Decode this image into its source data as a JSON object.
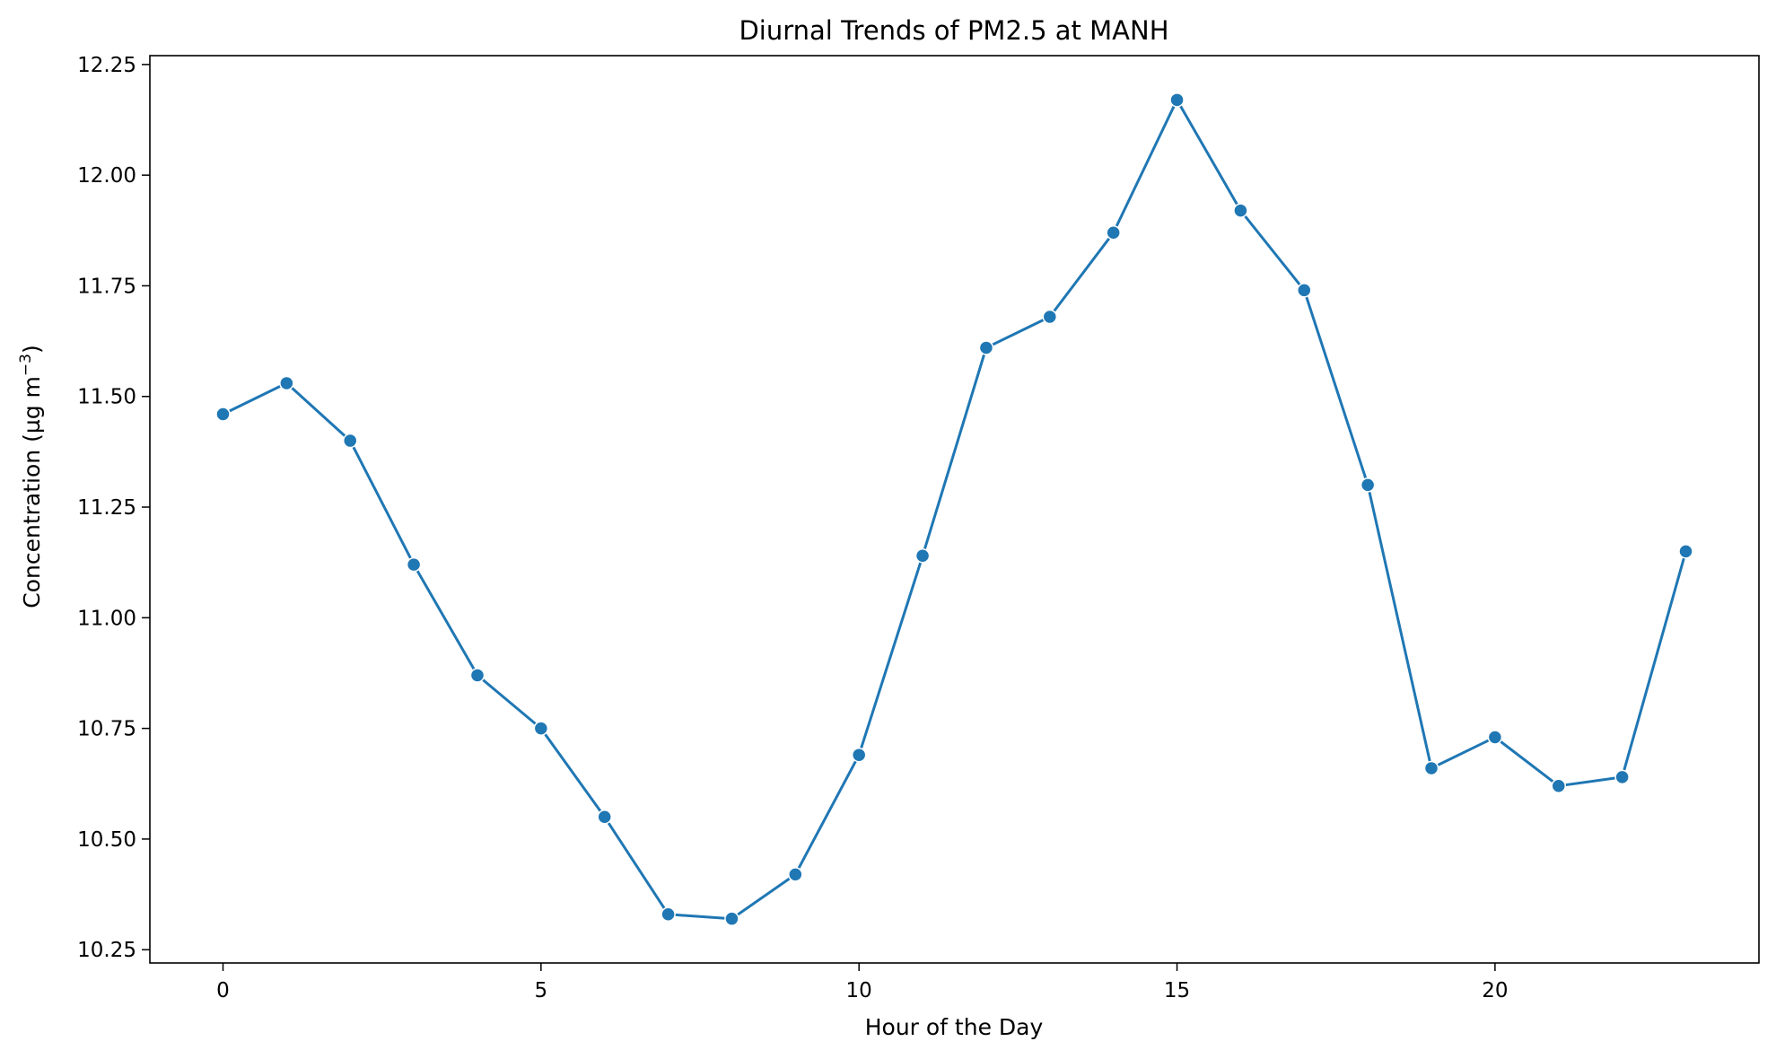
{
  "chart_data": {
    "type": "line",
    "title": "Diurnal Trends of PM2.5 at MANH",
    "xlabel": "Hour of the Day",
    "ylabel_main": "Concentration (µg m",
    "ylabel_sup": "−3",
    "ylabel_close": ")",
    "xlim": [
      -1.15,
      24.15
    ],
    "ylim": [
      10.22,
      12.27
    ],
    "xticks": [
      0,
      5,
      10,
      15,
      20
    ],
    "xtick_labels": [
      "0",
      "5",
      "10",
      "15",
      "20"
    ],
    "yticks": [
      10.25,
      10.5,
      10.75,
      11.0,
      11.25,
      11.5,
      11.75,
      12.0,
      12.25
    ],
    "ytick_labels": [
      "10.25",
      "10.50",
      "10.75",
      "11.00",
      "11.25",
      "11.50",
      "11.75",
      "12.00",
      "12.25"
    ],
    "grid": false,
    "color": "#1f77b4",
    "marker": "circle",
    "x": [
      0,
      1,
      2,
      3,
      4,
      5,
      6,
      7,
      8,
      9,
      10,
      11,
      12,
      13,
      14,
      15,
      16,
      17,
      18,
      19,
      20,
      21,
      22,
      23
    ],
    "y": [
      11.46,
      11.53,
      11.4,
      11.12,
      10.87,
      10.75,
      10.55,
      10.33,
      10.32,
      10.42,
      10.69,
      11.14,
      11.61,
      11.68,
      11.87,
      12.17,
      11.92,
      11.74,
      11.3,
      10.66,
      10.73,
      10.62,
      10.64,
      11.15
    ]
  }
}
